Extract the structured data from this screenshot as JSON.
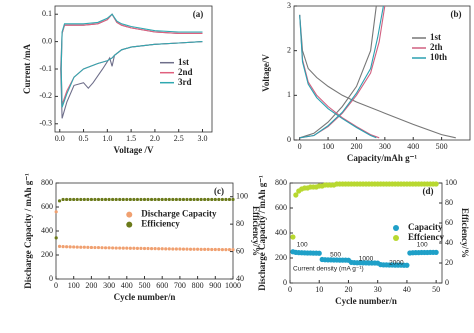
{
  "chart_data": [
    {
      "type": "line",
      "panel_label": "(a)",
      "xlabel": "Voltage /V",
      "ylabel": "Current /mA",
      "xlim": [
        -0.1,
        3.2
      ],
      "ylim": [
        -0.33,
        0.13
      ],
      "xticks": [
        {
          "value": 0,
          "label": "0.0"
        },
        0.5,
        {
          "value": 1,
          "label": "1.0"
        },
        1.5,
        {
          "value": 2,
          "label": "2.0"
        },
        2.5,
        {
          "value": 3,
          "label": "3.0"
        }
      ],
      "yticks": [
        0.1,
        {
          "value": 0,
          "label": "0.0"
        },
        -0.1,
        -0.2,
        -0.3
      ],
      "legend": "center-right",
      "series": [
        {
          "name": "1st",
          "color": "#6e6e8a",
          "x": [
            3.0,
            2.5,
            2.0,
            1.5,
            1.3,
            1.15,
            1.1,
            1.05,
            0.9,
            0.7,
            0.6,
            0.5,
            0.3,
            0.15,
            0.05,
            0.02,
            0.05,
            0.1,
            0.2,
            0.5,
            0.8,
            1.0,
            1.1,
            1.2,
            1.3,
            1.5,
            2.0,
            2.5,
            3.0
          ],
          "values": [
            0.0,
            -0.005,
            -0.01,
            -0.02,
            -0.03,
            -0.05,
            -0.09,
            -0.06,
            -0.1,
            -0.15,
            -0.17,
            -0.15,
            -0.16,
            -0.22,
            -0.28,
            -0.1,
            0.03,
            0.06,
            0.06,
            0.06,
            0.065,
            0.08,
            0.1,
            0.07,
            0.06,
            0.05,
            0.035,
            0.03,
            0.03
          ]
        },
        {
          "name": "2nd",
          "color": "#e0607e",
          "x": [
            3.0,
            2.5,
            2.0,
            1.5,
            1.3,
            1.15,
            1.1,
            1.0,
            0.8,
            0.5,
            0.3,
            0.15,
            0.05,
            0.03,
            0.05,
            0.1,
            0.2,
            0.5,
            0.8,
            1.0,
            1.1,
            1.2,
            1.3,
            1.5,
            2.0,
            2.5,
            3.0
          ],
          "values": [
            0.0,
            -0.005,
            -0.01,
            -0.02,
            -0.03,
            -0.05,
            -0.06,
            -0.07,
            -0.08,
            -0.1,
            -0.13,
            -0.18,
            -0.23,
            -0.1,
            0.03,
            0.06,
            0.06,
            0.06,
            0.065,
            0.08,
            0.1,
            0.07,
            0.06,
            0.05,
            0.035,
            0.03,
            0.03
          ]
        },
        {
          "name": "3rd",
          "color": "#2fa8b0",
          "x": [
            3.0,
            2.5,
            2.0,
            1.5,
            1.3,
            1.15,
            1.1,
            1.0,
            0.8,
            0.5,
            0.3,
            0.15,
            0.05,
            0.03,
            0.05,
            0.1,
            0.2,
            0.5,
            0.8,
            1.0,
            1.1,
            1.2,
            1.3,
            1.5,
            2.0,
            2.5,
            3.0
          ],
          "values": [
            0.0,
            -0.005,
            -0.01,
            -0.02,
            -0.03,
            -0.05,
            -0.06,
            -0.07,
            -0.08,
            -0.1,
            -0.13,
            -0.19,
            -0.24,
            -0.1,
            0.035,
            0.065,
            0.065,
            0.065,
            0.07,
            0.085,
            0.1,
            0.075,
            0.065,
            0.055,
            0.04,
            0.035,
            0.035
          ]
        }
      ]
    },
    {
      "type": "line",
      "panel_label": "(b)",
      "xlabel": "Capacity/mAh g⁻¹",
      "ylabel": "Voltage/V",
      "xlim": [
        -20,
        600
      ],
      "ylim": [
        0,
        3
      ],
      "xticks": [
        0,
        100,
        200,
        300,
        400,
        500
      ],
      "yticks": [
        0,
        1,
        2,
        3
      ],
      "legend": "upper-right",
      "series": [
        {
          "name": "1st",
          "color": "#777777",
          "x": [
            0,
            10,
            30,
            60,
            100,
            150,
            200,
            300,
            400,
            500,
            550,
            null,
            0,
            50,
            100,
            150,
            200,
            250,
            270
          ],
          "values": [
            2.8,
            2.0,
            1.6,
            1.4,
            1.2,
            1.0,
            0.85,
            0.6,
            0.35,
            0.12,
            0.05,
            null,
            0.05,
            0.15,
            0.4,
            0.75,
            1.2,
            2.0,
            3.0
          ]
        },
        {
          "name": "2th",
          "color": "#d06080",
          "x": [
            0,
            10,
            30,
            60,
            100,
            150,
            200,
            250,
            280,
            null,
            0,
            50,
            100,
            150,
            200,
            250,
            280,
            300
          ],
          "values": [
            2.8,
            1.8,
            1.3,
            1.0,
            0.75,
            0.5,
            0.3,
            0.12,
            0.05,
            null,
            0.05,
            0.1,
            0.3,
            0.6,
            1.0,
            1.5,
            2.2,
            3.0
          ]
        },
        {
          "name": "10th",
          "color": "#2aa0b0",
          "x": [
            0,
            10,
            30,
            60,
            100,
            150,
            200,
            250,
            270,
            null,
            0,
            50,
            100,
            150,
            200,
            250,
            275,
            295
          ],
          "values": [
            2.8,
            1.75,
            1.25,
            0.95,
            0.7,
            0.48,
            0.28,
            0.1,
            0.05,
            null,
            0.05,
            0.1,
            0.32,
            0.62,
            1.05,
            1.6,
            2.3,
            3.0
          ]
        }
      ]
    },
    {
      "type": "scatter",
      "panel_label": "(c)",
      "xlabel": "Cycle number/n",
      "ylabel": "Discharge Capacity / mAh g⁻¹",
      "y2label": "Efficiency/%",
      "xlim": [
        0,
        1000
      ],
      "ylim": [
        0,
        800
      ],
      "y2lim": [
        40,
        110
      ],
      "xticks": [
        0,
        100,
        200,
        300,
        400,
        500,
        600,
        700,
        800,
        900,
        1000
      ],
      "yticks": [
        0,
        200,
        400,
        600,
        800
      ],
      "y2ticks": [
        40,
        60,
        80,
        100
      ],
      "legend": "center",
      "x": [
        1,
        20,
        40,
        60,
        80,
        100,
        120,
        140,
        160,
        180,
        200,
        220,
        240,
        260,
        280,
        300,
        320,
        340,
        360,
        380,
        400,
        420,
        440,
        460,
        480,
        500,
        520,
        540,
        560,
        580,
        600,
        620,
        640,
        660,
        680,
        700,
        720,
        740,
        760,
        780,
        800,
        820,
        840,
        860,
        880,
        900,
        920,
        940,
        960,
        980,
        1000
      ],
      "series": [
        {
          "name": "Discharge Capacity",
          "color": "#f0a070",
          "values": [
            560,
            272,
            270,
            269,
            268,
            267,
            266,
            265,
            265,
            264,
            263,
            262,
            262,
            261,
            260,
            260,
            259,
            258,
            258,
            257,
            257,
            256,
            256,
            255,
            255,
            254,
            254,
            253,
            253,
            252,
            252,
            251,
            251,
            250,
            250,
            250,
            249,
            249,
            248,
            248,
            248,
            247,
            247,
            247,
            246,
            246,
            246,
            245,
            245,
            245,
            245
          ]
        },
        {
          "name": "Efficiency",
          "color": "#6b7a1a",
          "axis": "y2",
          "values": [
            70,
            97,
            98,
            98,
            98,
            98,
            98,
            98,
            98,
            98,
            98,
            98,
            98,
            98,
            98,
            98,
            98,
            98,
            98,
            98,
            98,
            98,
            98,
            98,
            98,
            98,
            98,
            98,
            98,
            98,
            98,
            98,
            98,
            98,
            98,
            98,
            98,
            98,
            98,
            98,
            98,
            98,
            98,
            98,
            98,
            98,
            98,
            98,
            98,
            98,
            98
          ]
        }
      ]
    },
    {
      "type": "scatter",
      "panel_label": "(d)",
      "xlabel": "Cycle number/n",
      "ylabel": "Discharge Capacity / mAh g⁻¹",
      "y2label": "Efficiency/%",
      "xlim": [
        0,
        52
      ],
      "ylim": [
        0,
        800
      ],
      "y2lim": [
        0,
        100
      ],
      "xticks": [
        0,
        10,
        20,
        30,
        40,
        50
      ],
      "yticks": [
        0,
        200,
        400,
        600,
        800
      ],
      "y2ticks": [
        0,
        20,
        40,
        60,
        80,
        100
      ],
      "legend": "center-right",
      "annotations": [
        "100",
        "500",
        "1000",
        "2000",
        "100",
        "Current density (mA g⁻¹)"
      ],
      "x": [
        1,
        2,
        3,
        4,
        5,
        6,
        7,
        8,
        9,
        10,
        11,
        12,
        13,
        14,
        15,
        16,
        17,
        18,
        19,
        20,
        21,
        22,
        23,
        24,
        25,
        26,
        27,
        28,
        29,
        30,
        31,
        32,
        33,
        34,
        35,
        36,
        37,
        38,
        39,
        40,
        41,
        42,
        43,
        44,
        45,
        46,
        47,
        48,
        49,
        50
      ],
      "series": [
        {
          "name": "Capacity",
          "color": "#1fa0c8",
          "values": [
            250,
            245,
            243,
            242,
            241,
            240,
            240,
            239,
            239,
            238,
            188,
            186,
            185,
            185,
            184,
            184,
            183,
            183,
            183,
            182,
            165,
            163,
            162,
            162,
            161,
            161,
            160,
            160,
            160,
            159,
            147,
            145,
            145,
            144,
            144,
            143,
            143,
            143,
            142,
            142,
            240,
            242,
            243,
            243,
            244,
            244,
            244,
            245,
            245,
            245
          ]
        },
        {
          "name": "Effciency",
          "color": "#b8d830",
          "axis": "y2",
          "values": [
            46,
            88,
            92,
            94,
            95,
            95,
            96,
            96,
            96,
            97,
            97,
            98,
            98,
            98,
            98,
            99,
            99,
            99,
            99,
            99,
            99,
            99,
            99,
            99,
            99,
            99,
            99,
            99,
            99,
            99,
            99,
            99,
            99,
            99,
            99,
            99,
            99,
            99,
            99,
            99,
            99,
            99,
            99,
            99,
            99,
            99,
            99,
            99,
            99,
            99
          ]
        }
      ]
    }
  ]
}
